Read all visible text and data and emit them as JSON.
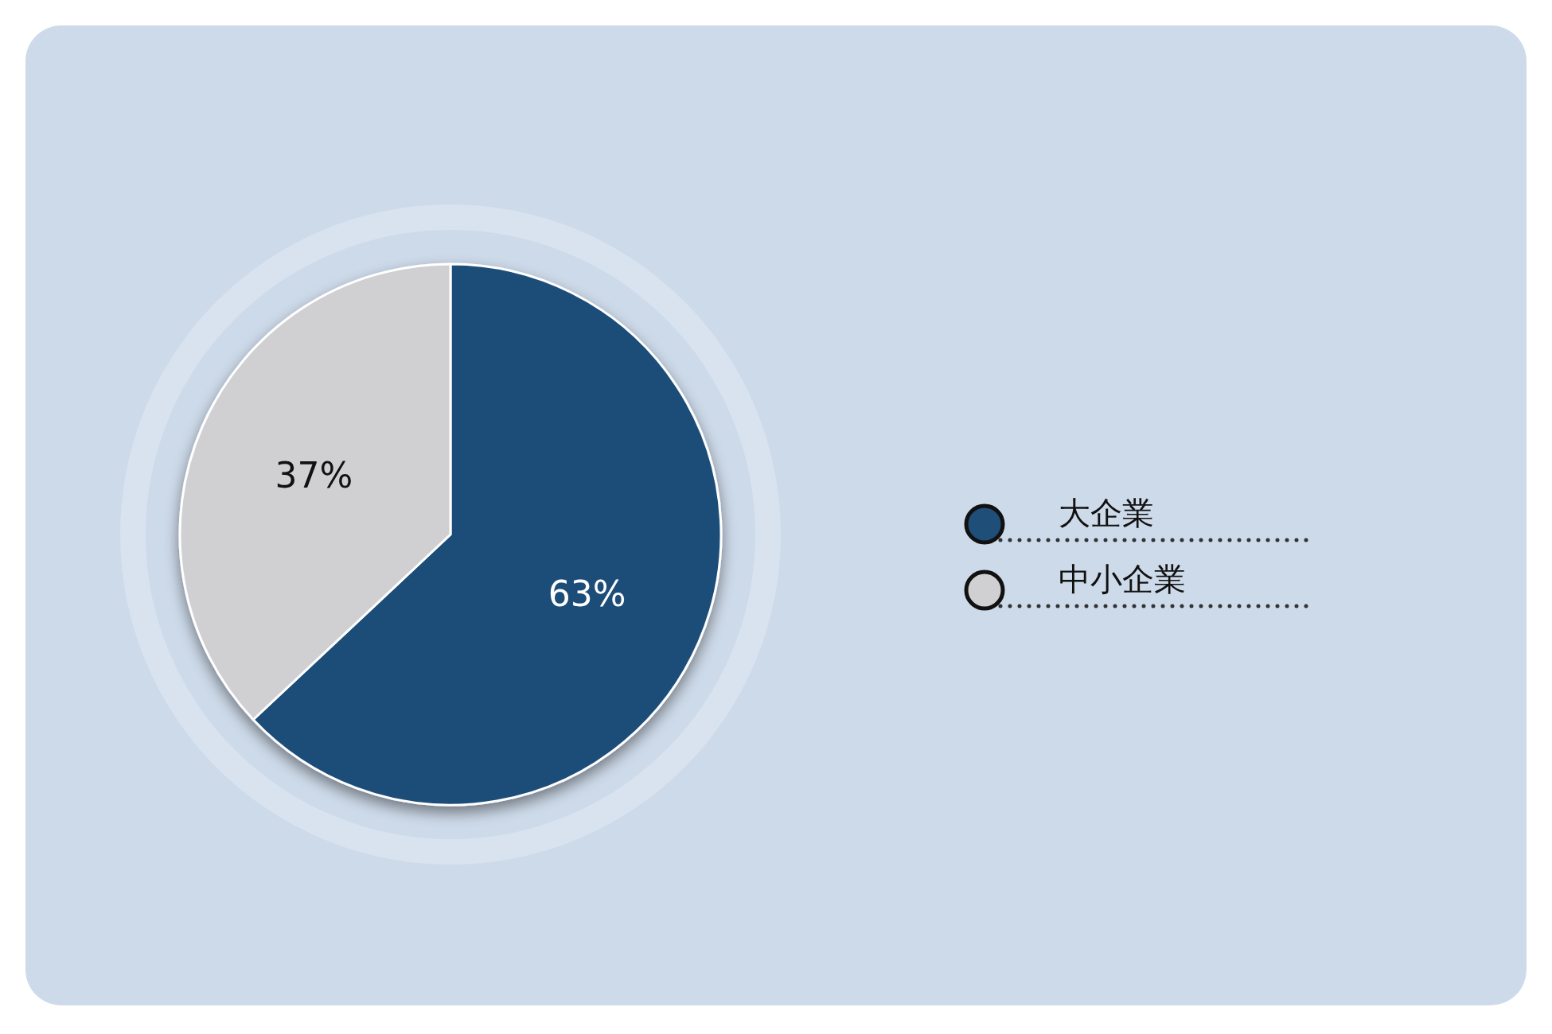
{
  "chart_data": {
    "type": "pie",
    "categories": [
      "大企業",
      "中小企業"
    ],
    "values": [
      63,
      37
    ],
    "colors": [
      "#1f4e79",
      "#d0cfd1"
    ],
    "value_labels": [
      "63%",
      "37%"
    ],
    "legend": "right"
  }
}
